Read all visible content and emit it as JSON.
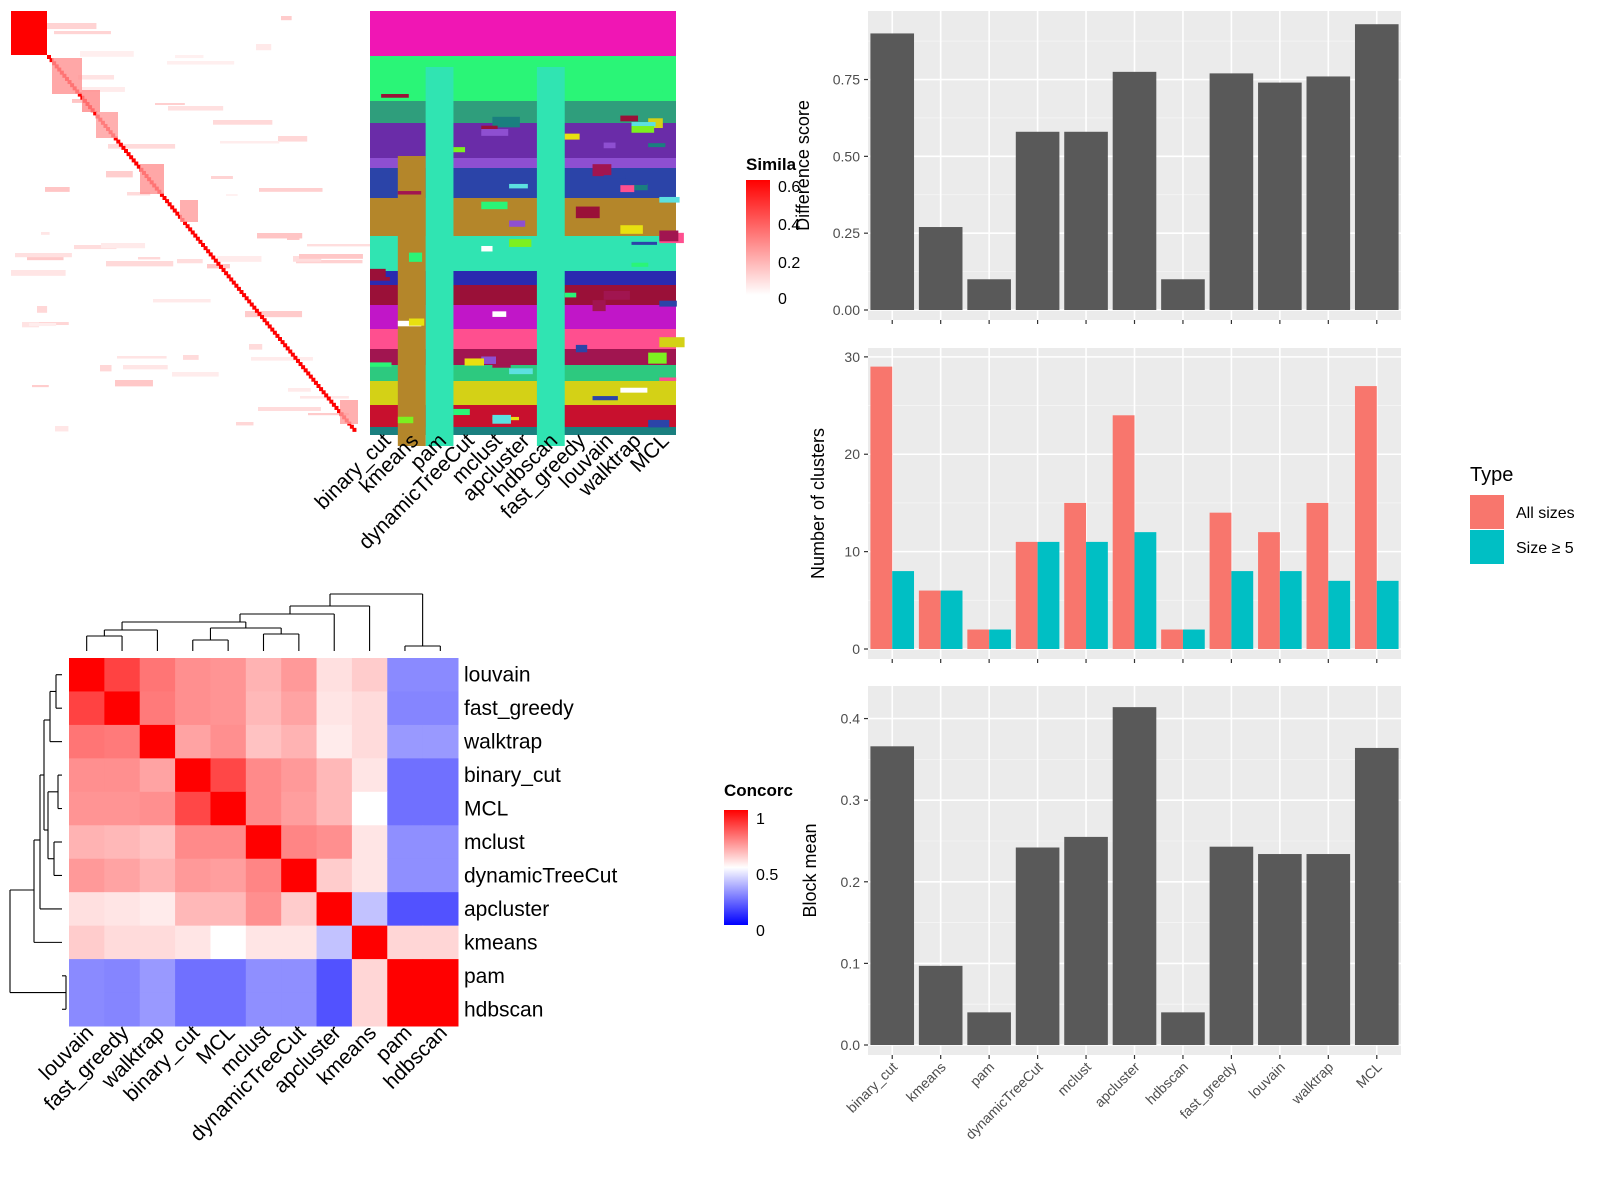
{
  "similarity_panel": {
    "legend_title": "Simila",
    "legend_ticks": [
      "0.6",
      "0.4",
      "0.2",
      "0"
    ],
    "methods": [
      "binary_cut",
      "kmeans",
      "pam",
      "dynamicTreeCut",
      "mclust",
      "apcluster",
      "hdbscan",
      "fast_greedy",
      "louvain",
      "walktrap",
      "MCL"
    ]
  },
  "concordance_panel": {
    "legend_title": "Concorc",
    "legend_ticks": [
      "1",
      "0.5",
      "0"
    ],
    "colors": {
      "high": "#ff0000",
      "mid": "#ffffff",
      "low": "#0000ff"
    }
  },
  "type_legend": {
    "title": "Type",
    "items": [
      {
        "label": "All sizes",
        "color": "#f8766d"
      },
      {
        "label": "Size ≥ 5",
        "color": "#00bfc4"
      }
    ]
  },
  "chart_data": [
    {
      "type": "heatmap",
      "rows": [
        "louvain",
        "fast_greedy",
        "walktrap",
        "binary_cut",
        "MCL",
        "mclust",
        "dynamicTreeCut",
        "apcluster",
        "kmeans",
        "pam",
        "hdbscan"
      ],
      "columns": [
        "louvain",
        "fast_greedy",
        "walktrap",
        "binary_cut",
        "MCL",
        "mclust",
        "dynamicTreeCut",
        "apcluster",
        "kmeans",
        "pam",
        "hdbscan"
      ],
      "values": [
        [
          1.0,
          0.87,
          0.77,
          0.72,
          0.71,
          0.65,
          0.7,
          0.56,
          0.6,
          0.27,
          0.27
        ],
        [
          0.87,
          1.0,
          0.76,
          0.72,
          0.71,
          0.64,
          0.68,
          0.55,
          0.57,
          0.26,
          0.26
        ],
        [
          0.77,
          0.76,
          1.0,
          0.68,
          0.72,
          0.62,
          0.65,
          0.54,
          0.57,
          0.3,
          0.3
        ],
        [
          0.72,
          0.72,
          0.68,
          1.0,
          0.86,
          0.73,
          0.7,
          0.64,
          0.55,
          0.22,
          0.22
        ],
        [
          0.71,
          0.71,
          0.72,
          0.86,
          1.0,
          0.73,
          0.69,
          0.64,
          0.5,
          0.22,
          0.22
        ],
        [
          0.65,
          0.64,
          0.62,
          0.73,
          0.73,
          1.0,
          0.74,
          0.72,
          0.55,
          0.28,
          0.28
        ],
        [
          0.7,
          0.68,
          0.65,
          0.7,
          0.69,
          0.74,
          1.0,
          0.6,
          0.55,
          0.28,
          0.28
        ],
        [
          0.56,
          0.55,
          0.54,
          0.64,
          0.64,
          0.72,
          0.6,
          1.0,
          0.38,
          0.16,
          0.16
        ],
        [
          0.6,
          0.57,
          0.57,
          0.55,
          0.5,
          0.55,
          0.55,
          0.38,
          1.0,
          0.58,
          0.58
        ],
        [
          0.27,
          0.26,
          0.3,
          0.22,
          0.22,
          0.28,
          0.28,
          0.16,
          0.58,
          1.0,
          1.0
        ],
        [
          0.27,
          0.26,
          0.3,
          0.22,
          0.22,
          0.28,
          0.28,
          0.16,
          0.58,
          1.0,
          1.0
        ]
      ],
      "zlim": [
        0,
        1
      ]
    },
    {
      "type": "bar",
      "categories": [
        "binary_cut",
        "kmeans",
        "pam",
        "dynamicTreeCut",
        "mclust",
        "apcluster",
        "hdbscan",
        "fast_greedy",
        "louvain",
        "walktrap",
        "MCL"
      ],
      "values": [
        0.9,
        0.27,
        0.1,
        0.58,
        0.58,
        0.775,
        0.1,
        0.77,
        0.74,
        0.76,
        0.93
      ],
      "ylabel": "Difference score",
      "yticks": [
        "0.00",
        "0.25",
        "0.50",
        "0.75"
      ],
      "ylim": [
        0,
        0.96
      ]
    },
    {
      "type": "bar",
      "categories": [
        "binary_cut",
        "kmeans",
        "pam",
        "dynamicTreeCut",
        "mclust",
        "apcluster",
        "hdbscan",
        "fast_greedy",
        "louvain",
        "walktrap",
        "MCL"
      ],
      "series": [
        {
          "name": "All sizes",
          "values": [
            29,
            6,
            2,
            11,
            15,
            24,
            2,
            14,
            12,
            15,
            27
          ]
        },
        {
          "name": "Size ≥ 5",
          "values": [
            8,
            6,
            2,
            11,
            11,
            12,
            2,
            8,
            8,
            7,
            7
          ]
        }
      ],
      "ylabel": "Number of clusters",
      "yticks": [
        "0",
        "10",
        "20",
        "30"
      ],
      "ylim": [
        0,
        30.5
      ]
    },
    {
      "type": "bar",
      "categories": [
        "binary_cut",
        "kmeans",
        "pam",
        "dynamicTreeCut",
        "mclust",
        "apcluster",
        "hdbscan",
        "fast_greedy",
        "louvain",
        "walktrap",
        "MCL"
      ],
      "values": [
        0.366,
        0.097,
        0.04,
        0.242,
        0.255,
        0.414,
        0.04,
        0.243,
        0.234,
        0.234,
        0.364
      ],
      "ylabel": "Block mean",
      "yticks": [
        "0.0",
        "0.1",
        "0.2",
        "0.3",
        "0.4"
      ],
      "ylim": [
        0,
        0.435
      ]
    }
  ]
}
